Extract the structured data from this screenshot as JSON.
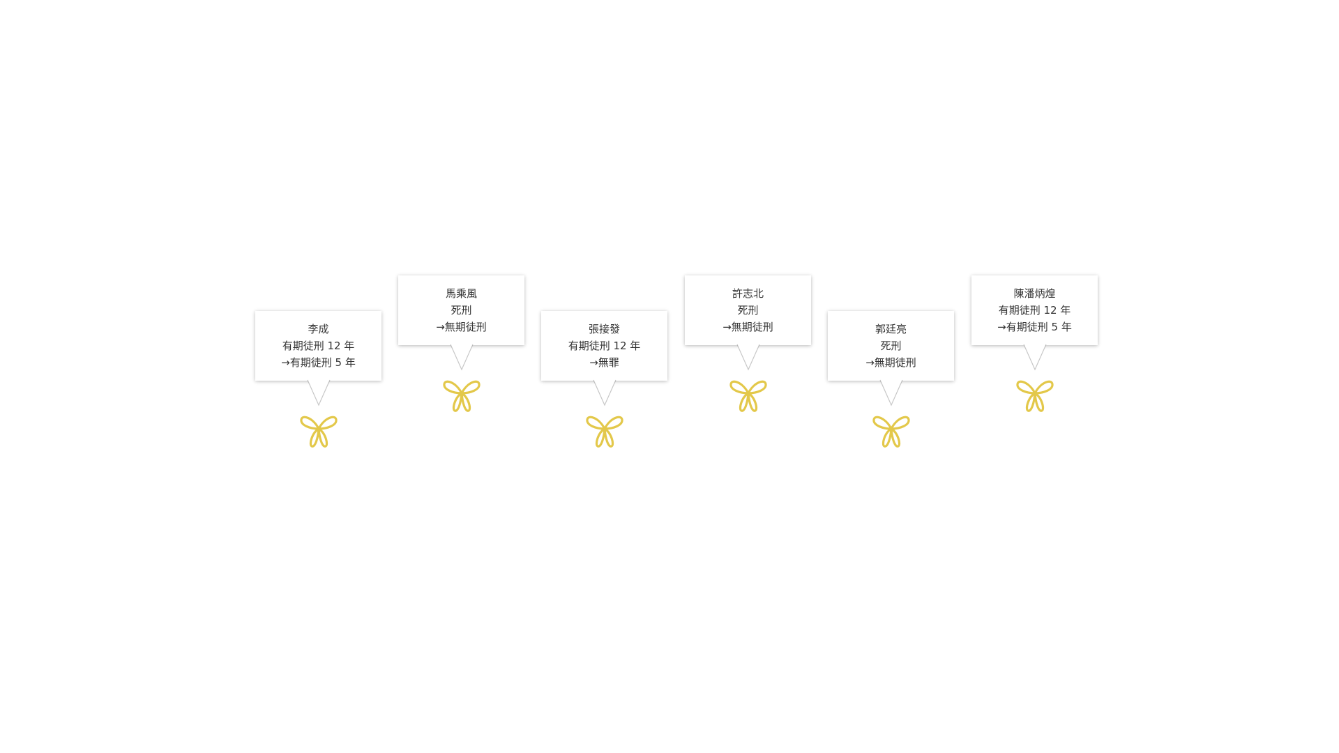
{
  "people": [
    {
      "name": "李成",
      "original": "有期徒刑 12 年",
      "revised": "→有期徒刑 5 年",
      "row": "low"
    },
    {
      "name": "馬乘風",
      "original": "死刑",
      "revised": "→無期徒刑",
      "row": "high"
    },
    {
      "name": "張接發",
      "original": "有期徒刑 12 年",
      "revised": "→無罪",
      "row": "low"
    },
    {
      "name": "許志北",
      "original": "死刑",
      "revised": "→無期徒刑",
      "row": "high"
    },
    {
      "name": "郭廷亮",
      "original": "死刑",
      "revised": "→無期徒刑",
      "row": "low"
    },
    {
      "name": "陳潘炳煌",
      "original": "有期徒刑 12 年",
      "revised": "→有期徒刑 5 年",
      "row": "high"
    }
  ],
  "colors": {
    "ribbon": "#e3c84a",
    "text": "#333333"
  },
  "icons": {
    "ribbon": "butterfly-ribbon-icon",
    "pointer": "callout-pointer"
  }
}
